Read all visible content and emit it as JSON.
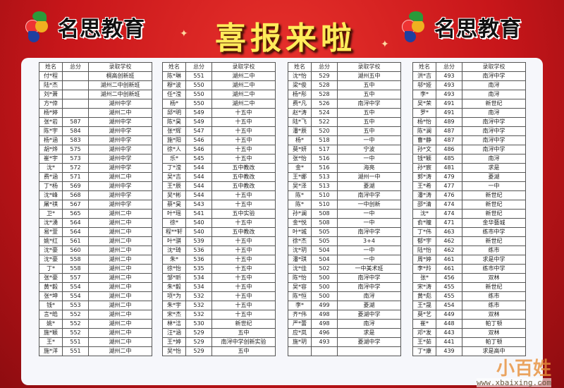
{
  "banner": {
    "brand_left": "名思教育",
    "brand_right": "名思教育",
    "title": "喜报来啦",
    "colors": {
      "background": "#c8161a",
      "title": "#ffec5a"
    }
  },
  "columns": [
    "姓名",
    "总分",
    "录取学校"
  ],
  "tables": [
    {
      "rows": [
        [
          "付*程",
          "",
          "桐高创新班"
        ],
        [
          "陆*杰",
          "",
          "湖州二中创新班"
        ],
        [
          "刘*萧",
          "",
          "湖州二中创新班"
        ],
        [
          "方*倖",
          "",
          "湖州中学"
        ],
        [
          "杨*婷",
          "",
          "湖州二中"
        ],
        [
          "张*岩",
          "587",
          "湖州中学"
        ],
        [
          "陈*宇",
          "584",
          "湖州中学"
        ],
        [
          "杨*涵",
          "583",
          "湖州中学"
        ],
        [
          "胡*烨",
          "575",
          "湖州中学"
        ],
        [
          "崔*宇",
          "573",
          "湖州中学"
        ],
        [
          "沈*",
          "572",
          "湖州中学"
        ],
        [
          "费*涵",
          "571",
          "湖州二中"
        ],
        [
          "丁*杨",
          "569",
          "湖州中学"
        ],
        [
          "沈*峰",
          "568",
          "湖州中学"
        ],
        [
          "屠*祺",
          "567",
          "湖州中学"
        ],
        [
          "卫*",
          "565",
          "湖州二中"
        ],
        [
          "沈*湧",
          "564",
          "湖州二中"
        ],
        [
          "易*萱",
          "564",
          "湖州二中"
        ],
        [
          "姚*红",
          "561",
          "湖州二中"
        ],
        [
          "沈*豪",
          "560",
          "湖州二中"
        ],
        [
          "沈*豪",
          "558",
          "湖州二中"
        ],
        [
          "丁*",
          "558",
          "湖州二中"
        ],
        [
          "张*豪",
          "557",
          "湖州二中"
        ],
        [
          "黄*毅",
          "554",
          "湖州二中"
        ],
        [
          "张*坤",
          "554",
          "湖州二中"
        ],
        [
          "钱*",
          "553",
          "湖州二中"
        ],
        [
          "言*皓",
          "552",
          "湖州二中"
        ],
        [
          "姚*",
          "552",
          "湖州二中"
        ],
        [
          "施*颖",
          "552",
          "湖州二中"
        ],
        [
          "王*",
          "551",
          "湖州二中"
        ],
        [
          "施*洋",
          "551",
          "湖州二中"
        ]
      ]
    },
    {
      "rows": [
        [
          "陈*琳",
          "551",
          "湖州二中"
        ],
        [
          "穆*波",
          "550",
          "湖州二中"
        ],
        [
          "任*滢",
          "550",
          "湖州二中"
        ],
        [
          "杨*",
          "550",
          "湖州二中"
        ],
        [
          "邱*明",
          "549",
          "十五中"
        ],
        [
          "陈*昊",
          "549",
          "十五中"
        ],
        [
          "张*辉",
          "547",
          "十五中"
        ],
        [
          "施*阳",
          "546",
          "十五中"
        ],
        [
          "徐*人",
          "546",
          "十五中"
        ],
        [
          "乐*",
          "545",
          "十五中"
        ],
        [
          "丁*滢",
          "544",
          "五中教改"
        ],
        [
          "吴*吉",
          "544",
          "五中教改"
        ],
        [
          "王*辰",
          "544",
          "五中教改"
        ],
        [
          "吴*彬",
          "544",
          "十五中"
        ],
        [
          "蔡*昊",
          "543",
          "十五中"
        ],
        [
          "叶*瑶",
          "541",
          "五中实验"
        ],
        [
          "徐*",
          "540",
          "十五中"
        ],
        [
          "程**轩",
          "540",
          "五中教改"
        ],
        [
          "叶*骐",
          "539",
          "十五中"
        ],
        [
          "沈*琦",
          "536",
          "十五中"
        ],
        [
          "朱*",
          "536",
          "十五中"
        ],
        [
          "徐*怡",
          "535",
          "十五中"
        ],
        [
          "邹*昕",
          "534",
          "十五中"
        ],
        [
          "朱*毅",
          "534",
          "十五中"
        ],
        [
          "项*为",
          "532",
          "十五中"
        ],
        [
          "朱*宇",
          "532",
          "十五中"
        ],
        [
          "宋*杰",
          "532",
          "十五中"
        ],
        [
          "林*洁",
          "530",
          "新世纪"
        ],
        [
          "汪*涵",
          "529",
          "五中"
        ],
        [
          "王*婷",
          "529",
          "南浔中学创新实验"
        ],
        [
          "吴*怡",
          "529",
          "五中"
        ]
      ]
    },
    {
      "rows": [
        [
          "沈*怡",
          "529",
          "湖州五中"
        ],
        [
          "梁*俊",
          "528",
          "五中"
        ],
        [
          "杨*彤",
          "528",
          "五中"
        ],
        [
          "费*凡",
          "526",
          "南浔中学"
        ],
        [
          "赵*涛",
          "524",
          "五中"
        ],
        [
          "陆*飞",
          "522",
          "五中"
        ],
        [
          "潘*辰",
          "520",
          "五中"
        ],
        [
          "杨*",
          "518",
          "一中"
        ],
        [
          "莫*妍",
          "517",
          "宁波"
        ],
        [
          "张*怡",
          "516",
          "一中"
        ],
        [
          "金*",
          "516",
          "海亮"
        ],
        [
          "王*娜",
          "513",
          "湖州一中"
        ],
        [
          "吴*泽",
          "513",
          "菱湖"
        ],
        [
          "陈*",
          "510",
          "南浔中学"
        ],
        [
          "陈*",
          "510",
          "一中创新"
        ],
        [
          "孙*澜",
          "508",
          "一中"
        ],
        [
          "金*悦",
          "508",
          "一中"
        ],
        [
          "叶*城",
          "505",
          "南浔中学"
        ],
        [
          "徐*杰",
          "505",
          "3+4"
        ],
        [
          "沈*玥",
          "504",
          "一中"
        ],
        [
          "潘*琪",
          "504",
          "一中"
        ],
        [
          "沈*佳",
          "502",
          "一中美术班"
        ],
        [
          "陈*怡",
          "500",
          "南浔中学"
        ],
        [
          "吴*容",
          "500",
          "南浔中学"
        ],
        [
          "陈*恒",
          "500",
          "南浔"
        ],
        [
          "李*",
          "499",
          "菱湖"
        ],
        [
          "齐*伟",
          "498",
          "菱湖中学"
        ],
        [
          "严*蕾",
          "498",
          "南浔"
        ],
        [
          "应*岚",
          "496",
          "求是"
        ],
        [
          "施*玥",
          "493",
          "菱湖中学"
        ],
        [
          "",
          "",
          ""
        ]
      ]
    },
    {
      "rows": [
        [
          "洪*吉",
          "493",
          "南浔中学"
        ],
        [
          "邬*娅",
          "493",
          "南浔"
        ],
        [
          "李*",
          "493",
          "南浔"
        ],
        [
          "吴*荣",
          "491",
          "新世纪"
        ],
        [
          "罗*",
          "491",
          "南浔"
        ],
        [
          "杨*怡",
          "489",
          "南浔中学"
        ],
        [
          "陈*澜",
          "487",
          "南浔中学"
        ],
        [
          "曹*静",
          "487",
          "南浔中学"
        ],
        [
          "孙*文",
          "486",
          "南浔中学"
        ],
        [
          "钱*颖",
          "485",
          "南浔"
        ],
        [
          "孙*宸",
          "481",
          "求是"
        ],
        [
          "郭*涛",
          "479",
          "菱湖"
        ],
        [
          "王*希",
          "477",
          "一中"
        ],
        [
          "潘*涛",
          "476",
          "新世纪"
        ],
        [
          "邵*清",
          "474",
          "新世纪"
        ],
        [
          "沈*",
          "474",
          "新世纪"
        ],
        [
          "俞*瞳",
          "471",
          "金华藝城"
        ],
        [
          "丁*伟",
          "463",
          "练市中学"
        ],
        [
          "郁*宇",
          "462",
          "新世纪"
        ],
        [
          "陆*怡",
          "462",
          "练市"
        ],
        [
          "周*婷",
          "461",
          "求是中学"
        ],
        [
          "李*羚",
          "461",
          "练市中学"
        ],
        [
          "张*",
          "456",
          "双林"
        ],
        [
          "宋*涛",
          "455",
          "新世纪"
        ],
        [
          "黄*彪",
          "455",
          "练市"
        ],
        [
          "王*晟",
          "454",
          "练市"
        ],
        [
          "莫*艺",
          "449",
          "双林"
        ],
        [
          "崔*",
          "448",
          "帕丁顿"
        ],
        [
          "邓*发",
          "443",
          "双林"
        ],
        [
          "王*茹",
          "441",
          "帕丁顿"
        ],
        [
          "丁*康",
          "439",
          "求是高中"
        ]
      ]
    }
  ],
  "watermark": {
    "brand": "小百姓",
    "url": "www.xbaixing.com"
  }
}
